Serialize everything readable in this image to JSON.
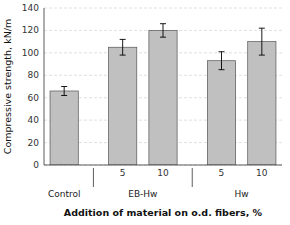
{
  "chart_data": {
    "type": "bar",
    "categories": [
      null,
      "5",
      "10",
      "5",
      "10"
    ],
    "groups": [
      "Control",
      "EB-Hw",
      "EB-Hw",
      "Hw",
      "Hw"
    ],
    "values": [
      66,
      105,
      120,
      93,
      110
    ],
    "errors": [
      4,
      7,
      6,
      8,
      12
    ],
    "color": "#c0c0c0",
    "xlabel": "Addition of material on o.d. fibers, %",
    "ylabel": "Compressive strength, kN/m",
    "ylim": [
      0,
      140
    ],
    "yticks": [
      0,
      20,
      40,
      60,
      80,
      100,
      120,
      140
    ],
    "grid": true
  }
}
